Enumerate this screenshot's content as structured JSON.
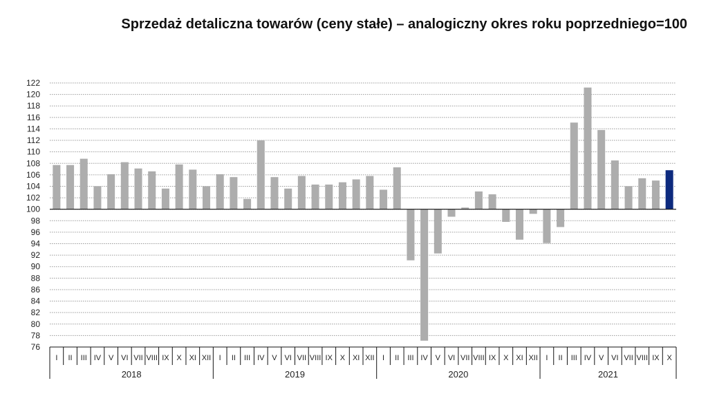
{
  "chart_data": {
    "type": "bar",
    "title": "Sprzedaż detaliczna towarów (ceny stałe) – analogiczny okres roku poprzedniego=100",
    "baseline": 100,
    "ylim": [
      76,
      122
    ],
    "yticks": [
      76,
      78,
      80,
      82,
      84,
      86,
      88,
      90,
      92,
      94,
      96,
      98,
      100,
      102,
      104,
      106,
      108,
      110,
      112,
      114,
      116,
      118,
      120,
      122
    ],
    "gridlines": true,
    "years": [
      "2018",
      "2019",
      "2020",
      "2021"
    ],
    "month_labels": [
      "I",
      "II",
      "III",
      "IV",
      "V",
      "VI",
      "VII",
      "VIII",
      "IX",
      "X",
      "XI",
      "XII"
    ],
    "categories": [
      "I",
      "II",
      "III",
      "IV",
      "V",
      "VI",
      "VII",
      "VIII",
      "IX",
      "X",
      "XI",
      "XII",
      "I",
      "II",
      "III",
      "IV",
      "V",
      "VI",
      "VII",
      "VIII",
      "IX",
      "X",
      "XI",
      "XII",
      "I",
      "II",
      "III",
      "IV",
      "V",
      "VI",
      "VII",
      "VIII",
      "IX",
      "X",
      "XI",
      "XII",
      "I",
      "II",
      "III",
      "IV",
      "V",
      "VI",
      "VII",
      "VIII",
      "IX",
      "X"
    ],
    "values": [
      107.7,
      107.7,
      108.8,
      104.0,
      106.1,
      108.2,
      107.1,
      106.6,
      103.6,
      107.8,
      106.9,
      104.0,
      106.1,
      105.6,
      101.8,
      112.0,
      105.6,
      103.6,
      105.8,
      104.3,
      104.3,
      104.7,
      105.2,
      105.8,
      103.4,
      107.3,
      91.1,
      77.1,
      92.3,
      98.7,
      100.3,
      103.1,
      102.6,
      97.8,
      94.7,
      99.2,
      94.1,
      96.9,
      115.1,
      121.2,
      113.8,
      108.5,
      104.0,
      105.4,
      105.0,
      106.8
    ],
    "highlight_index": 45,
    "colors": {
      "bar": "#adadad",
      "highlight": "#0d2a7e",
      "grid": "#9a9a9a",
      "axis": "#111111"
    }
  }
}
